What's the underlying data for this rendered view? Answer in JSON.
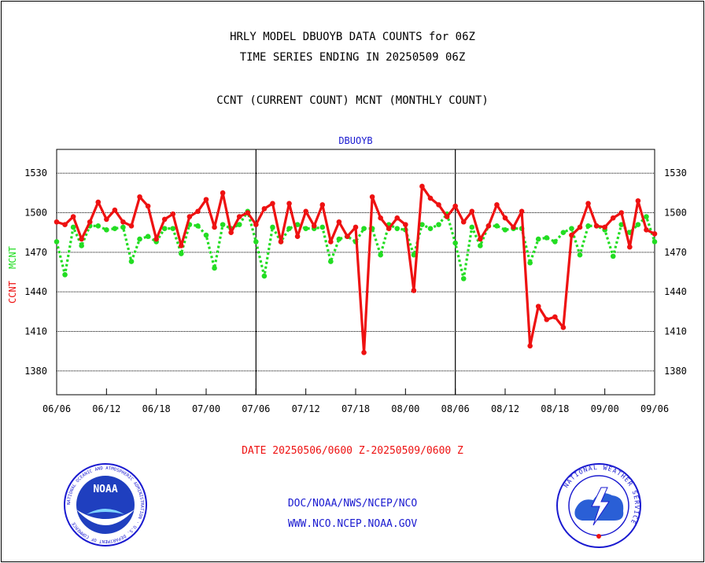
{
  "header": {
    "title_line1": "HRLY MODEL DBUOYB DATA COUNTS for 06Z",
    "title_line2": "TIME SERIES ENDING IN 20250509 06Z",
    "subtitle": "CCNT (CURRENT COUNT) MCNT (MONTHLY COUNT)"
  },
  "footer": {
    "date_range": "DATE 20250506/0600 Z-20250509/0600 Z",
    "credit_line1": "DOC/NOAA/NWS/NCEP/NCO",
    "credit_line2": "WWW.NCO.NCEP.NOAA.GOV"
  },
  "logos": {
    "left": {
      "icon": "noaa-logo-icon",
      "text": "NOAA",
      "ring_text": "NATIONAL OCEANIC AND ATMOSPHERIC ADMINISTRATION · U.S. DEPARTMENT OF COMMERCE"
    },
    "right": {
      "icon": "nws-logo-icon",
      "ring_text": "NATIONAL WEATHER SERVICE"
    }
  },
  "colors": {
    "ccnt": "#ee1111",
    "mcnt": "#22dd22",
    "title": "#1a1ad0",
    "date": "#ee1111"
  },
  "chart_data": {
    "type": "line",
    "title": "DBUOYB",
    "ylabel_ccnt": "CCNT",
    "ylabel_mcnt": "MCNT",
    "ylim": [
      1362,
      1548
    ],
    "yticks": [
      1380,
      1410,
      1440,
      1470,
      1500,
      1530
    ],
    "xlim": [
      0,
      72
    ],
    "xticks": [
      {
        "x": 0,
        "label": "06/06"
      },
      {
        "x": 6,
        "label": "06/12"
      },
      {
        "x": 12,
        "label": "06/18"
      },
      {
        "x": 18,
        "label": "07/00"
      },
      {
        "x": 24,
        "label": "07/06"
      },
      {
        "x": 30,
        "label": "07/12"
      },
      {
        "x": 36,
        "label": "07/18"
      },
      {
        "x": 42,
        "label": "08/00"
      },
      {
        "x": 48,
        "label": "08/06"
      },
      {
        "x": 54,
        "label": "08/12"
      },
      {
        "x": 60,
        "label": "08/18"
      },
      {
        "x": 66,
        "label": "09/00"
      },
      {
        "x": 72,
        "label": "09/06"
      }
    ],
    "day_boundaries": [
      24,
      48
    ],
    "grid": true,
    "series": [
      {
        "name": "CCNT",
        "style": "solid",
        "values": [
          1493,
          1491,
          1497,
          1480,
          1493,
          1508,
          1495,
          1502,
          1493,
          1490,
          1512,
          1505,
          1480,
          1495,
          1499,
          1475,
          1497,
          1501,
          1510,
          1489,
          1515,
          1485,
          1497,
          1500,
          1491,
          1503,
          1507,
          1478,
          1507,
          1482,
          1501,
          1490,
          1506,
          1478,
          1493,
          1482,
          1489,
          1394,
          1512,
          1496,
          1488,
          1496,
          1491,
          1441,
          1520,
          1511,
          1506,
          1497,
          1505,
          1493,
          1501,
          1480,
          1490,
          1506,
          1496,
          1489,
          1501,
          1399,
          1429,
          1419,
          1421,
          1413,
          1483,
          1489,
          1507,
          1490,
          1489,
          1496,
          1500,
          1474,
          1509,
          1487,
          1484
        ]
      },
      {
        "name": "MCNT",
        "style": "dotted",
        "values": [
          1478,
          1453,
          1489,
          1475,
          1490,
          1490,
          1487,
          1488,
          1489,
          1463,
          1480,
          1482,
          1478,
          1488,
          1488,
          1469,
          1491,
          1490,
          1483,
          1458,
          1491,
          1488,
          1491,
          1501,
          1478,
          1452,
          1489,
          1478,
          1488,
          1491,
          1488,
          1488,
          1489,
          1463,
          1480,
          1482,
          1478,
          1488,
          1488,
          1468,
          1491,
          1488,
          1487,
          1468,
          1491,
          1488,
          1491,
          1499,
          1477,
          1450,
          1489,
          1475,
          1490,
          1490,
          1487,
          1488,
          1488,
          1462,
          1480,
          1481,
          1478,
          1485,
          1488,
          1468,
          1490,
          1490,
          1487,
          1467,
          1491,
          1485,
          1491,
          1497,
          1478
        ]
      }
    ]
  }
}
